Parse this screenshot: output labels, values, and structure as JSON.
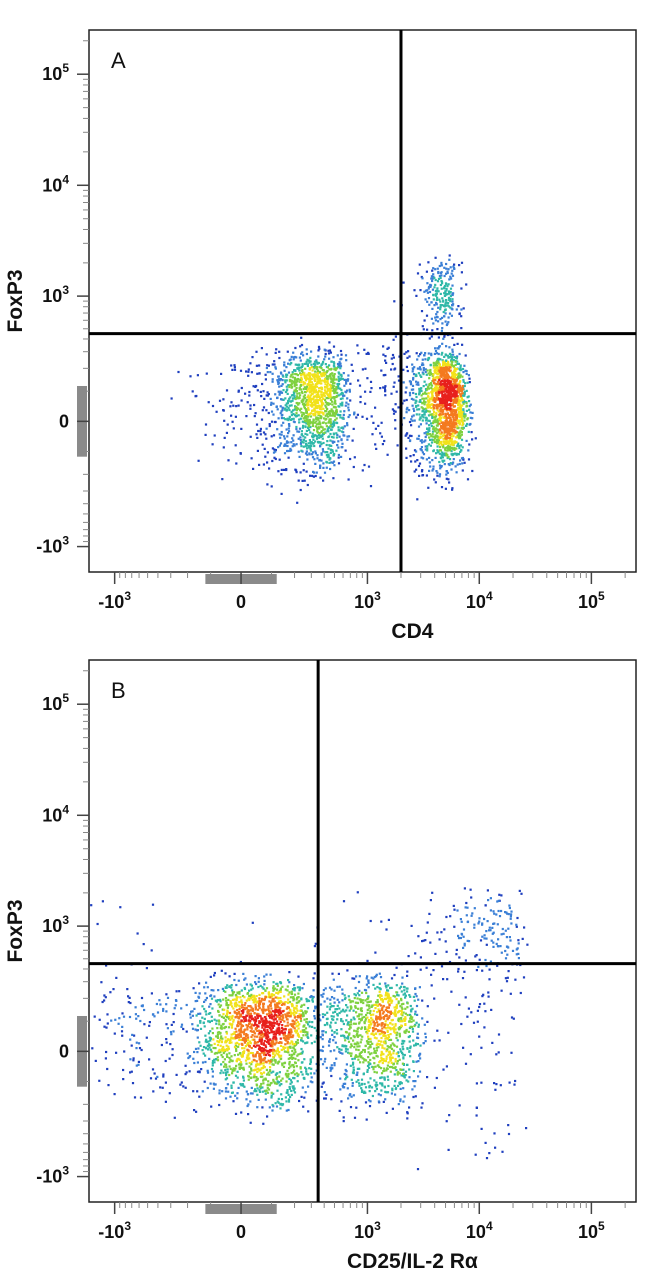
{
  "chart_data": [
    {
      "type": "scatter",
      "panel_label": "A",
      "xlabel": "CD4",
      "ylabel": "FoxP3",
      "x_scale": "biexponential",
      "y_scale": "biexponential",
      "x_ticks": [
        {
          "base": "-10",
          "exp": "3",
          "value": -1000
        },
        {
          "base": "0",
          "exp": "",
          "value": 0
        },
        {
          "base": "10",
          "exp": "3",
          "value": 1000
        },
        {
          "base": "10",
          "exp": "4",
          "value": 10000
        },
        {
          "base": "10",
          "exp": "5",
          "value": 100000
        }
      ],
      "y_ticks": [
        {
          "base": "-10",
          "exp": "3",
          "value": -1000
        },
        {
          "base": "0",
          "exp": "",
          "value": 0
        },
        {
          "base": "10",
          "exp": "3",
          "value": 1000
        },
        {
          "base": "10",
          "exp": "4",
          "value": 10000
        },
        {
          "base": "10",
          "exp": "5",
          "value": 100000
        }
      ],
      "xlim": [
        -1700,
        250000
      ],
      "ylim": [
        -1700,
        250000
      ],
      "quadrant_gate": {
        "x": 2000,
        "y": 450
      },
      "populations": [
        {
          "name_hidden": "cd4-negative",
          "x_center": 300,
          "y_center": 60,
          "x_spread": 160,
          "y_spread": 110,
          "count": 1400
        },
        {
          "name_hidden": "cd4-positive",
          "x_center": 4800,
          "y_center": 60,
          "x_spread": 1300,
          "y_spread": 110,
          "count": 1500
        },
        {
          "name_hidden": "cd4-positive-foxp3-positive",
          "x_center": 4500,
          "y_center": 1000,
          "x_spread": 1000,
          "y_spread": 500,
          "count": 260
        },
        {
          "name_hidden": "bridge",
          "x_center": 1200,
          "y_center": 100,
          "x_spread": 600,
          "y_spread": 150,
          "count": 90
        }
      ],
      "colormap": [
        "#1f3fbf",
        "#3a7fd6",
        "#2fb8a8",
        "#7ed13f",
        "#f2e21b",
        "#f47a1f",
        "#e8201d"
      ]
    },
    {
      "type": "scatter",
      "panel_label": "B",
      "xlabel": "CD25/IL-2 Rα",
      "ylabel": "FoxP3",
      "x_scale": "biexponential",
      "y_scale": "biexponential",
      "x_ticks": [
        {
          "base": "-10",
          "exp": "3",
          "value": -1000
        },
        {
          "base": "0",
          "exp": "",
          "value": 0
        },
        {
          "base": "10",
          "exp": "3",
          "value": 1000
        },
        {
          "base": "10",
          "exp": "4",
          "value": 10000
        },
        {
          "base": "10",
          "exp": "5",
          "value": 100000
        }
      ],
      "y_ticks": [
        {
          "base": "-10",
          "exp": "3",
          "value": -1000
        },
        {
          "base": "0",
          "exp": "",
          "value": 0
        },
        {
          "base": "10",
          "exp": "3",
          "value": 1000
        },
        {
          "base": "10",
          "exp": "4",
          "value": 10000
        },
        {
          "base": "10",
          "exp": "5",
          "value": 100000
        }
      ],
      "xlim": [
        -1700,
        250000
      ],
      "ylim": [
        -1700,
        250000
      ],
      "quadrant_gate": {
        "x": 350,
        "y": 450
      },
      "populations": [
        {
          "name_hidden": "cd25-negative",
          "x_center": 60,
          "y_center": 60,
          "x_spread": 100,
          "y_spread": 110,
          "count": 1500
        },
        {
          "name_hidden": "cd25-low",
          "x_center": 900,
          "y_center": 60,
          "x_spread": 900,
          "y_spread": 120,
          "count": 1400
        },
        {
          "name_hidden": "cd25-high-foxp3-positive",
          "x_center": 9000,
          "y_center": 700,
          "x_spread": 7000,
          "y_spread": 600,
          "count": 320
        }
      ],
      "colormap": [
        "#1f3fbf",
        "#3a7fd6",
        "#2fb8a8",
        "#7ed13f",
        "#f2e21b",
        "#f47a1f",
        "#e8201d"
      ]
    }
  ]
}
